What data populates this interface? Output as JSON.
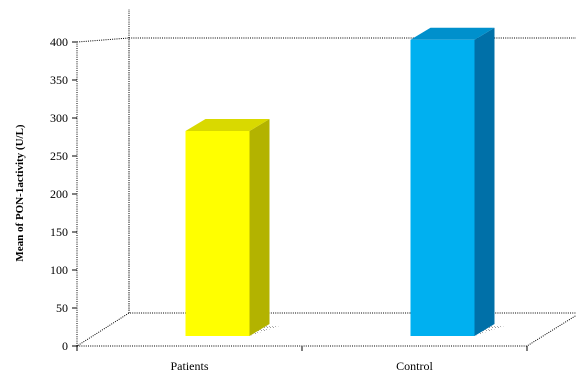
{
  "chart_data": {
    "type": "bar",
    "categories": [
      "Patients",
      "Control"
    ],
    "values": [
      275,
      395
    ],
    "ylabel": "Mean of PON-1activity (U/L)",
    "ylim": [
      0,
      400
    ],
    "yticks": [
      0,
      50,
      100,
      150,
      200,
      250,
      300,
      350,
      400
    ],
    "grid": false,
    "style": "3d-column",
    "colors": {
      "Patients": {
        "front": "#ffff00",
        "side": "#b3b300",
        "top": "#d9d900"
      },
      "Control": {
        "front": "#00b0f0",
        "side": "#0070a8",
        "top": "#0090cc"
      }
    }
  }
}
